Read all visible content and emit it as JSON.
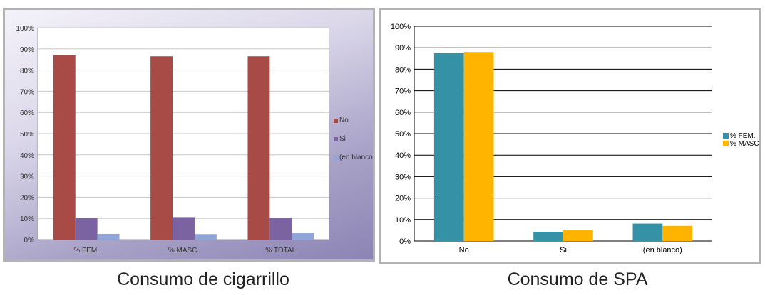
{
  "charts": {
    "left": {
      "caption": "Consumo de cigarrillo",
      "chart_data": {
        "type": "bar",
        "categories": [
          "% FEM.",
          "% MASC.",
          "% TOTAL"
        ],
        "series": [
          {
            "name": "No",
            "values": [
              87,
              86.5,
              86.5
            ]
          },
          {
            "name": "Si",
            "values": [
              10.2,
              10.6,
              10.3
            ]
          },
          {
            "name": "(en blanco)",
            "values": [
              2.7,
              2.6,
              3.0
            ]
          }
        ],
        "ylim": [
          0,
          100
        ],
        "yticks": [
          "0%",
          "10%",
          "20%",
          "30%",
          "40%",
          "50%",
          "60%",
          "70%",
          "80%",
          "90%",
          "100%"
        ],
        "grid": true,
        "legend": "right",
        "colors": [
          "#a84a46",
          "#7b62a0",
          "#8fa5d8"
        ]
      }
    },
    "right": {
      "caption": "Consumo de SPA",
      "chart_data": {
        "type": "bar",
        "categories": [
          "No",
          "Si",
          "(en blanco)"
        ],
        "series": [
          {
            "name": "% FEM.",
            "values": [
              87.5,
              4.3,
              8.1
            ]
          },
          {
            "name": "% MASC.",
            "values": [
              88.0,
              5.0,
              7.0
            ]
          }
        ],
        "ylim": [
          0,
          100
        ],
        "yticks": [
          "0%",
          "10%",
          "20%",
          "30%",
          "40%",
          "50%",
          "60%",
          "70%",
          "80%",
          "90%",
          "100%"
        ],
        "grid": true,
        "legend": "right",
        "colors": [
          "#3592a6",
          "#ffb400"
        ]
      }
    }
  }
}
